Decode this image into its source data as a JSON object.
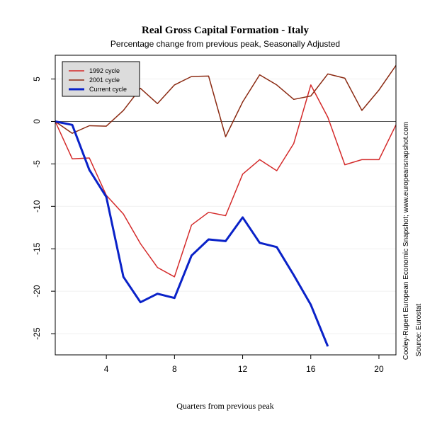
{
  "chart_data": {
    "type": "line",
    "title": "Real Gross Capital Formation - Italy",
    "subtitle": "Percentage change from previous peak, Seasonally Adjusted",
    "xlabel": "Quarters from previous peak",
    "ylabel": "",
    "xlim": [
      1,
      21
    ],
    "ylim": [
      -27.5,
      7.8
    ],
    "x_ticks": [
      4,
      8,
      12,
      16,
      20
    ],
    "y_ticks": [
      5,
      0,
      -5,
      -10,
      -15,
      -20,
      -25
    ],
    "zero_line": true,
    "grid": true,
    "legend_position": "top-left",
    "series": [
      {
        "name": "1992 cycle",
        "color": "#d42a2a",
        "x": [
          1,
          2,
          3,
          4,
          5,
          6,
          7,
          8,
          9,
          10,
          11,
          12,
          13,
          14,
          15,
          16,
          17,
          18,
          19,
          20,
          21
        ],
        "values": [
          0,
          -4.4,
          -4.3,
          -8.7,
          -10.9,
          -14.4,
          -17.2,
          -18.3,
          -12.2,
          -10.7,
          -11.1,
          -6.2,
          -4.5,
          -5.8,
          -2.6,
          4.3,
          0.5,
          -5.1,
          -4.5,
          -4.5,
          -0.4
        ]
      },
      {
        "name": "2001 cycle",
        "color": "#8b2a12",
        "x": [
          1,
          2,
          3,
          4,
          5,
          6,
          7,
          8,
          9,
          10,
          11,
          12,
          13,
          14,
          15,
          16,
          17,
          18,
          19,
          20,
          21
        ],
        "values": [
          0,
          -1.4,
          -0.5,
          -0.55,
          1.3,
          3.9,
          2.1,
          4.3,
          5.3,
          5.35,
          -1.8,
          2.3,
          5.5,
          4.3,
          2.6,
          3.0,
          5.6,
          5.1,
          1.3,
          3.7,
          6.6
        ]
      },
      {
        "name": "Current cycle",
        "color": "#0a22c8",
        "x": [
          1,
          2,
          3,
          4,
          5,
          6,
          7,
          8,
          9,
          10,
          11,
          12,
          13,
          14,
          15,
          16,
          17
        ],
        "values": [
          0,
          -0.4,
          -5.7,
          -8.9,
          -18.3,
          -21.3,
          -20.3,
          -20.8,
          -15.8,
          -13.9,
          -14.1,
          -11.3,
          -14.3,
          -14.8,
          -18.1,
          -21.6,
          -26.5
        ]
      }
    ],
    "side_notes": [
      "Cooley-Rupert European Economic Snapshot; www.europeansnapshot.com",
      "Source: Eurostat"
    ]
  }
}
